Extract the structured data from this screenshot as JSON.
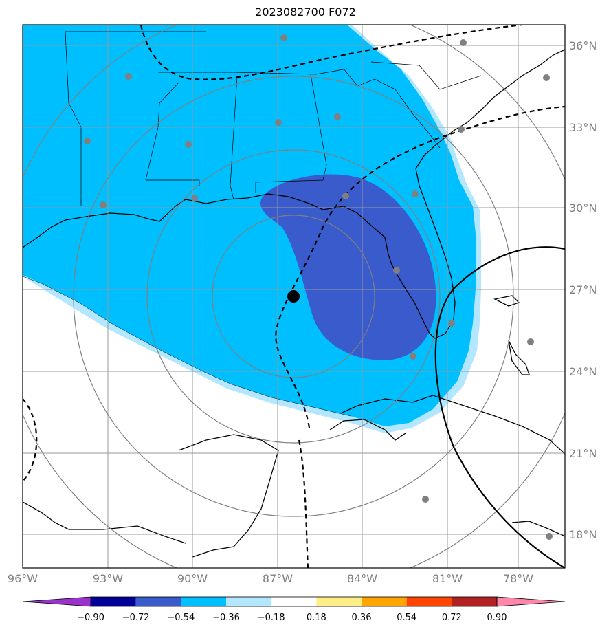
{
  "title": "2023082700 F072",
  "map": {
    "lon_labels": [
      "96°W",
      "93°W",
      "90°W",
      "87°W",
      "84°W",
      "81°W",
      "78°W"
    ],
    "lat_labels": [
      "36°N",
      "33°N",
      "30°N",
      "27°N",
      "24°N",
      "21°N",
      "18°N"
    ]
  },
  "colorbar": {
    "colors": [
      "#9933cc",
      "#000099",
      "#3a5bcc",
      "#00bfff",
      "#b3e6ff",
      "#ffffff",
      "#ffee88",
      "#ffa500",
      "#ff4500",
      "#b22222",
      "#ff88aa"
    ],
    "tick_labels": [
      "−0.90",
      "−0.72",
      "−0.54",
      "−0.36",
      "−0.18",
      "0.18",
      "0.36",
      "0.54",
      "0.72",
      "0.90"
    ]
  }
}
